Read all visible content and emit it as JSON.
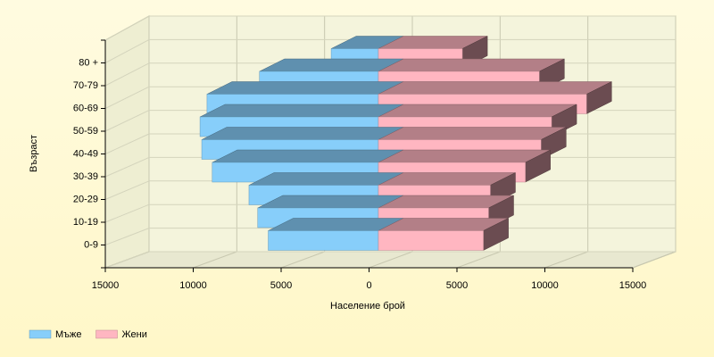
{
  "chart_data": {
    "type": "bar",
    "x_label": "Население брой",
    "y_label": "Възраст",
    "categories": [
      "0-9",
      "10-19",
      "20-29",
      "30-39",
      "40-49",
      "50-59",
      "60-69",
      "70-79",
      "80 +"
    ],
    "series": [
      {
        "name": "Мъже",
        "color": "#87cefa",
        "side": "left",
        "values": [
          6300,
          6900,
          7400,
          9500,
          10100,
          10200,
          9800,
          6800,
          2700
        ]
      },
      {
        "name": "Жени",
        "color": "#ffb6c1",
        "side": "right",
        "values": [
          6000,
          6300,
          6400,
          8400,
          9300,
          9900,
          11900,
          9200,
          4800
        ]
      }
    ],
    "xlim": [
      -15000,
      15000
    ],
    "xticks": [
      {
        "value": -15000,
        "label": "15000"
      },
      {
        "value": -10000,
        "label": "10000"
      },
      {
        "value": -5000,
        "label": "5000"
      },
      0,
      5000,
      10000,
      15000
    ],
    "grid": true,
    "legend": "bottom-left"
  }
}
